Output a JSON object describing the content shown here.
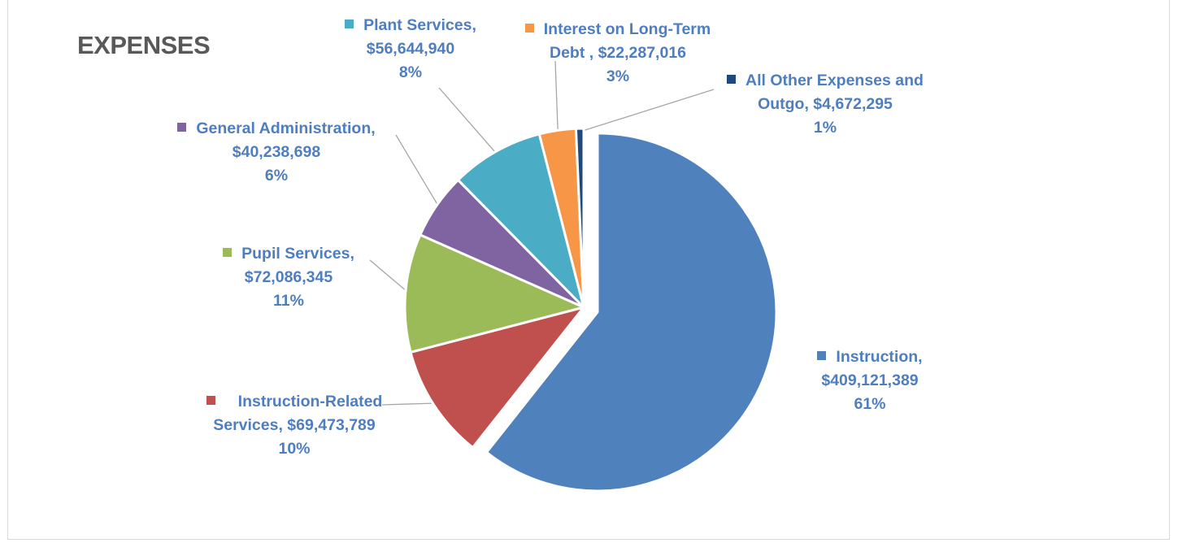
{
  "chart_data": {
    "type": "pie",
    "title": "EXPENSES",
    "slices": [
      {
        "name": "Instruction",
        "value": 409121389,
        "value_label": "$409,121,389",
        "percent": "61%",
        "color": "#4f81bd",
        "exploded": true
      },
      {
        "name": "Instruction-Related Services",
        "value": 69473789,
        "value_label": "$69,473,789",
        "percent": "10%",
        "color": "#c0504d"
      },
      {
        "name": "Pupil Services",
        "value": 72086345,
        "value_label": "$72,086,345",
        "percent": "11%",
        "color": "#9bbb59"
      },
      {
        "name": "General Administration",
        "value": 40238698,
        "value_label": "$40,238,698",
        "percent": "6%",
        "color": "#8064a2"
      },
      {
        "name": "Plant Services",
        "value": 56644940,
        "value_label": "$56,644,940",
        "percent": "8%",
        "color": "#4bacc6"
      },
      {
        "name": "Interest on Long-Term Debt ",
        "value": 22287016,
        "value_label": "$22,287,016",
        "percent": "3%",
        "color": "#f79646"
      },
      {
        "name": "All Other Expenses and Outgo",
        "value": 4672295,
        "value_label": "$4,672,295",
        "percent": "1%",
        "color": "#1f497d"
      }
    ],
    "legend": "none",
    "label_color": "#4f81bd"
  },
  "labels": {
    "instruction": {
      "line1": "Instruction,",
      "line2": "$409,121,389",
      "pct": "61%"
    },
    "instruction_related": {
      "line1": "Instruction-Related",
      "line2": "Services, $69,473,789",
      "pct": "10%"
    },
    "pupil": {
      "line1": "Pupil Services,",
      "line2": "$72,086,345",
      "pct": "11%"
    },
    "general_admin": {
      "line1": "General Administration,",
      "line2": "$40,238,698",
      "pct": "6%"
    },
    "plant": {
      "line1": "Plant Services,",
      "line2": "$56,644,940",
      "pct": "8%"
    },
    "interest": {
      "line1": "Interest on Long-Term",
      "line2": "Debt , $22,287,016",
      "pct": "3%"
    },
    "other": {
      "line1": "All Other Expenses and",
      "line2": "Outgo, $4,672,295",
      "pct": "1%"
    }
  }
}
